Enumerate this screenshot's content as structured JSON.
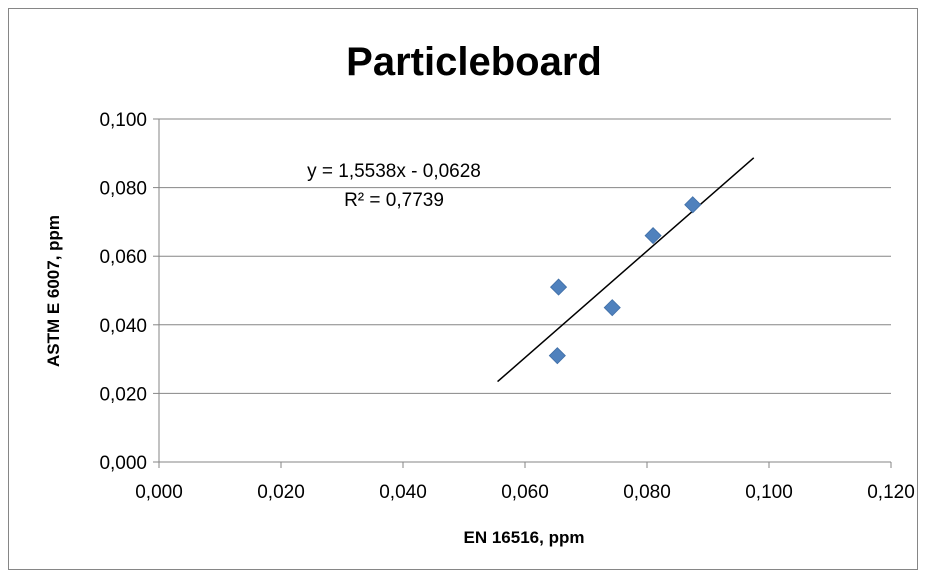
{
  "chart_data": {
    "type": "scatter",
    "title": "Particleboard",
    "xlabel": "EN 16516, ppm",
    "ylabel": "ASTM E 6007, ppm",
    "xlim": [
      0,
      0.12
    ],
    "ylim": [
      0,
      0.1
    ],
    "x_ticks": [
      "0,000",
      "0,020",
      "0,040",
      "0,060",
      "0,080",
      "0,100",
      "0,120"
    ],
    "y_ticks": [
      "0,000",
      "0,020",
      "0,040",
      "0,060",
      "0,080",
      "0,100"
    ],
    "x_tick_values": [
      0,
      0.02,
      0.04,
      0.06,
      0.08,
      0.1,
      0.12
    ],
    "y_tick_values": [
      0,
      0.02,
      0.04,
      0.06,
      0.08,
      0.1
    ],
    "grid": "horizontal",
    "series": [
      {
        "color": "#4f81bd",
        "marker": "diamond",
        "points": [
          {
            "x": 0.0655,
            "y": 0.051
          },
          {
            "x": 0.0653,
            "y": 0.031
          },
          {
            "x": 0.0743,
            "y": 0.045
          },
          {
            "x": 0.081,
            "y": 0.066
          },
          {
            "x": 0.0875,
            "y": 0.075
          }
        ]
      }
    ],
    "trendline": {
      "type": "linear",
      "slope": 1.5538,
      "intercept": -0.0628,
      "x_range": [
        0.0555,
        0.0975
      ],
      "color": "#000000",
      "equation": "y = 1,5538x - 0,0628",
      "r_squared": "R² = 0,7739"
    }
  }
}
